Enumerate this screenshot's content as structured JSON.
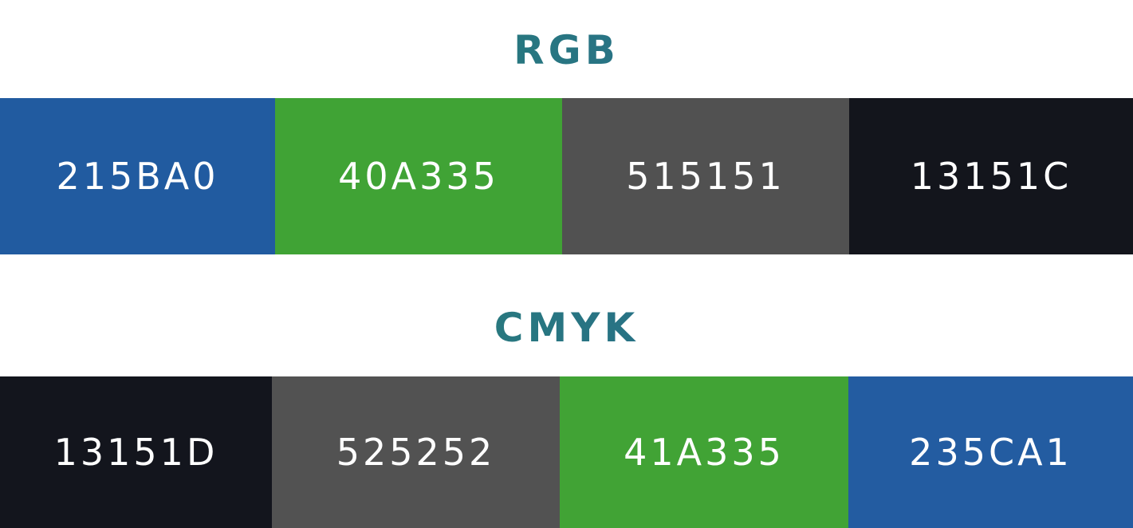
{
  "sections": {
    "rgb": {
      "heading": "RGB",
      "swatches": [
        {
          "label": "215BA0",
          "color": "#215BA0"
        },
        {
          "label": "40A335",
          "color": "#40A335"
        },
        {
          "label": "515151",
          "color": "#515151"
        },
        {
          "label": "13151C",
          "color": "#13151C"
        }
      ]
    },
    "cmyk": {
      "heading": "CMYK",
      "swatches": [
        {
          "label": "13151D",
          "color": "#13151D"
        },
        {
          "label": "525252",
          "color": "#525252"
        },
        {
          "label": "41A335",
          "color": "#41A335"
        },
        {
          "label": "235CA1",
          "color": "#235CA1"
        }
      ]
    }
  },
  "heading_gradient": [
    "#2e8a6a",
    "#22609a"
  ],
  "text_color": "#ffffff"
}
